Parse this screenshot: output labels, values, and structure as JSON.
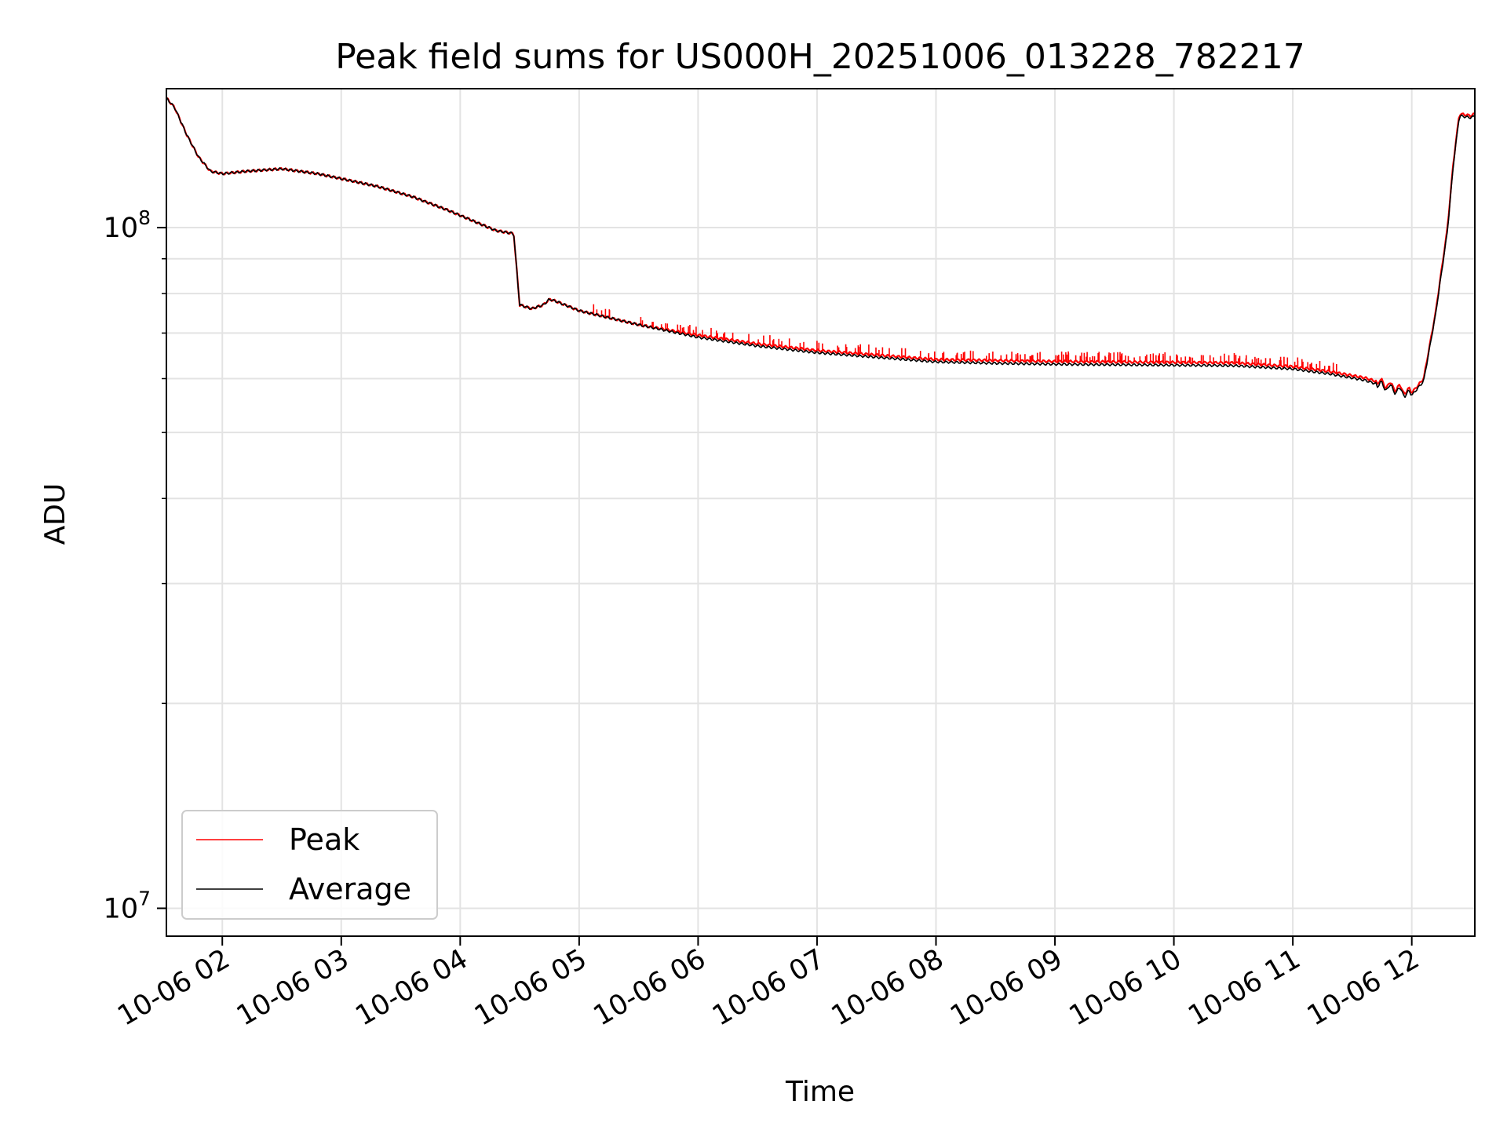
{
  "chart_data": {
    "type": "line",
    "title": "Peak field sums for US000H_20251006_013228_782217",
    "xlabel": "Time",
    "ylabel": "ADU",
    "yscale": "log",
    "ylim": [
      9100000,
      160000000
    ],
    "xlim_hours": [
      1.53,
      12.53
    ],
    "grid": true,
    "legend_position": "lower-left",
    "x_ticks": [
      {
        "hour": 2,
        "label": "10-06 02"
      },
      {
        "hour": 3,
        "label": "10-06 03"
      },
      {
        "hour": 4,
        "label": "10-06 04"
      },
      {
        "hour": 5,
        "label": "10-06 05"
      },
      {
        "hour": 6,
        "label": "10-06 06"
      },
      {
        "hour": 7,
        "label": "10-06 07"
      },
      {
        "hour": 8,
        "label": "10-06 08"
      },
      {
        "hour": 9,
        "label": "10-06 09"
      },
      {
        "hour": 10,
        "label": "10-06 10"
      },
      {
        "hour": 11,
        "label": "10-06 11"
      },
      {
        "hour": 12,
        "label": "10-06 12"
      }
    ],
    "y_ticks": [
      {
        "value": 10000000,
        "base": "10",
        "exp": "7"
      },
      {
        "value": 100000000,
        "base": "10",
        "exp": "8"
      }
    ],
    "series": [
      {
        "name": "Peak",
        "color": "#ff0000",
        "hours": [
          1.53,
          1.6,
          1.7,
          1.8,
          1.9,
          2.0,
          2.2,
          2.5,
          2.8,
          3.0,
          3.3,
          3.6,
          3.9,
          4.3,
          4.45,
          4.5,
          4.6,
          4.7,
          4.75,
          4.8,
          5.0,
          5.5,
          6.0,
          6.5,
          7.0,
          7.5,
          8.0,
          8.5,
          9.0,
          9.5,
          10.0,
          10.5,
          11.0,
          11.3,
          11.6,
          11.9,
          12.0,
          12.1,
          12.2,
          12.3,
          12.35,
          12.4,
          12.5,
          12.53
        ],
        "values": [
          155000000,
          150000000,
          137000000,
          127000000,
          121000000,
          120000000,
          121000000,
          122000000,
          120000000,
          118000000,
          115000000,
          111000000,
          106000000,
          99000000,
          98000000,
          77000000,
          76000000,
          77000000,
          78500000,
          78000000,
          75500000,
          72000000,
          69500000,
          67500000,
          66000000,
          65000000,
          64000000,
          63800000,
          63600000,
          63500000,
          63400000,
          63300000,
          62500000,
          61500000,
          60200000,
          58000000,
          57200000,
          60000000,
          75000000,
          100000000,
          125000000,
          147000000,
          146000000,
          147000000
        ]
      },
      {
        "name": "Average",
        "color": "#000000",
        "hours": [
          1.53,
          1.6,
          1.7,
          1.8,
          1.9,
          2.0,
          2.2,
          2.5,
          2.8,
          3.0,
          3.3,
          3.6,
          3.9,
          4.3,
          4.45,
          4.5,
          4.6,
          4.7,
          4.75,
          4.8,
          5.0,
          5.5,
          6.0,
          6.5,
          7.0,
          7.5,
          8.0,
          8.5,
          9.0,
          9.5,
          10.0,
          10.5,
          11.0,
          11.3,
          11.6,
          11.9,
          12.0,
          12.1,
          12.2,
          12.3,
          12.35,
          12.4,
          12.5,
          12.53
        ],
        "values": [
          155000000,
          150000000,
          137000000,
          127000000,
          121000000,
          120000000,
          121000000,
          122000000,
          120000000,
          118000000,
          115000000,
          111000000,
          106000000,
          99000000,
          98000000,
          77000000,
          76000000,
          77000000,
          78500000,
          78000000,
          75500000,
          72000000,
          69000000,
          67000000,
          65500000,
          64500000,
          63500000,
          63200000,
          63000000,
          62900000,
          62800000,
          62700000,
          62000000,
          61000000,
          59700000,
          57500000,
          56700000,
          59500000,
          74500000,
          99000000,
          124000000,
          146000000,
          145000000,
          146000000
        ]
      }
    ],
    "peak_spikes": {
      "hour_range": [
        5.1,
        11.4
      ],
      "approx_top_value": 64500000
    }
  }
}
